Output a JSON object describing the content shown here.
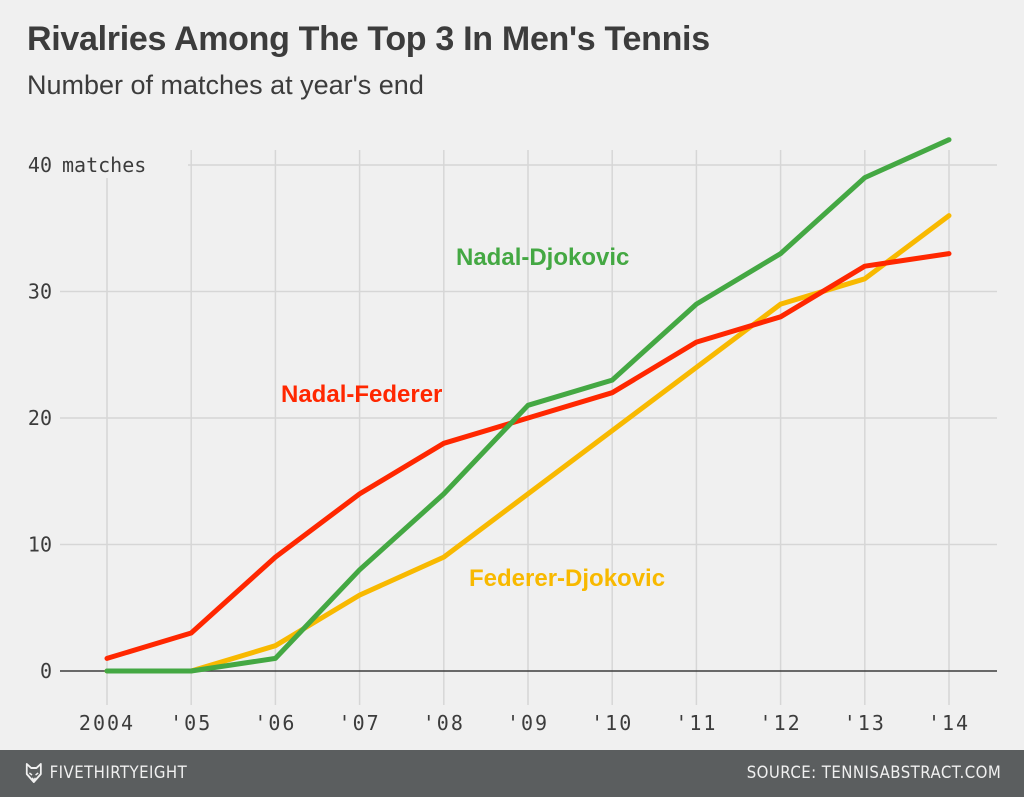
{
  "header": {
    "title": "Rivalries Among The Top 3 In Men's Tennis",
    "subtitle": "Number of matches at year's end"
  },
  "footer": {
    "brand": "FIVETHIRTYEIGHT",
    "brand_icon": "fox-logo-icon",
    "source": "SOURCE: TENNISABSTRACT.COM"
  },
  "chart_data": {
    "type": "line",
    "title": "Rivalries Among The Top 3 In Men's Tennis",
    "subtitle": "Number of matches at year's end",
    "xlabel": "",
    "ylabel": "matches",
    "x": [
      2004,
      2005,
      2006,
      2007,
      2008,
      2009,
      2010,
      2011,
      2012,
      2013,
      2014
    ],
    "x_tick_labels": [
      "2004",
      "'05",
      "'06",
      "'07",
      "'08",
      "'09",
      "'10",
      "'11",
      "'12",
      "'13",
      "'14"
    ],
    "y_ticks": [
      0,
      10,
      20,
      30,
      40
    ],
    "y_tick_labels": [
      "0",
      "10",
      "20",
      "30",
      "40"
    ],
    "y_unit_label": "matches",
    "ylim": [
      0,
      42
    ],
    "grid": true,
    "legend": "inline-labels",
    "series": [
      {
        "name": "Nadal-Djokovic",
        "color": "#44a843",
        "values": [
          0,
          0,
          1,
          8,
          14,
          21,
          23,
          29,
          33,
          39,
          42
        ]
      },
      {
        "name": "Nadal-Federer",
        "color": "#ff2700",
        "values": [
          1,
          3,
          9,
          14,
          18,
          20,
          22,
          26,
          28,
          32,
          33
        ]
      },
      {
        "name": "Federer-Djokovic",
        "color": "#f8b900",
        "values": [
          0,
          0,
          2,
          6,
          9,
          14,
          19,
          24,
          29,
          31,
          36
        ]
      }
    ]
  }
}
